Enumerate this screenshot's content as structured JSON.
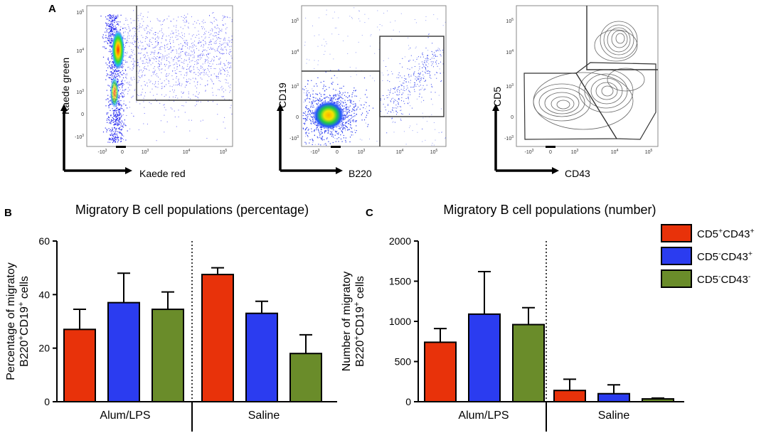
{
  "panels": {
    "a": "A",
    "b": "B",
    "c": "C"
  },
  "flow": {
    "tick_labels": [
      "10^5",
      "10^4",
      "10^3",
      "0",
      "-10^3"
    ],
    "plots": [
      {
        "ylabel": "Kaede green",
        "xlabel": "Kaede red"
      },
      {
        "ylabel": "CD19",
        "xlabel": "B220"
      },
      {
        "ylabel": "CD5",
        "xlabel": "CD43"
      }
    ]
  },
  "legend": [
    {
      "label": "CD5+CD43+",
      "color": "#e8320a"
    },
    {
      "label": "CD5-CD43+",
      "color": "#2b3cf0"
    },
    {
      "label": "CD5-CD43-",
      "color": "#6a8c2a"
    }
  ],
  "chart_data": [
    {
      "type": "bar",
      "title": "Migratory B cell populations (percentage)",
      "ylabel": "Percentage of migratoy B220+CD19+ cells",
      "ylabel_lines": [
        "Percentage of migratoy",
        "B220+CD19+ cells"
      ],
      "ylim": [
        0,
        60
      ],
      "yticks": [
        0,
        20,
        40,
        60
      ],
      "groups": [
        "Alum/LPS",
        "Saline"
      ],
      "series": [
        {
          "name": "CD5+CD43+",
          "values": [
            27,
            47.5
          ],
          "errors": [
            7.5,
            2.5
          ]
        },
        {
          "name": "CD5-CD43+",
          "values": [
            37,
            33
          ],
          "errors": [
            11,
            4.5
          ]
        },
        {
          "name": "CD5-CD43-",
          "values": [
            34.5,
            18
          ],
          "errors": [
            6.5,
            7
          ]
        }
      ]
    },
    {
      "type": "bar",
      "title": "Migratory B cell populations (number)",
      "ylabel": "Number of migratoy B220+CD19+ cells",
      "ylabel_lines": [
        "Number of migratoy",
        "B220+CD19+ cells"
      ],
      "ylim": [
        0,
        2000
      ],
      "yticks": [
        0,
        500,
        1000,
        1500,
        2000
      ],
      "groups": [
        "Alum/LPS",
        "Saline"
      ],
      "series": [
        {
          "name": "CD5+CD43+",
          "values": [
            740,
            140
          ],
          "errors": [
            170,
            140
          ]
        },
        {
          "name": "CD5-CD43+",
          "values": [
            1090,
            100
          ],
          "errors": [
            530,
            110
          ]
        },
        {
          "name": "CD5-CD43-",
          "values": [
            960,
            35
          ],
          "errors": [
            210,
            10
          ]
        }
      ]
    }
  ]
}
